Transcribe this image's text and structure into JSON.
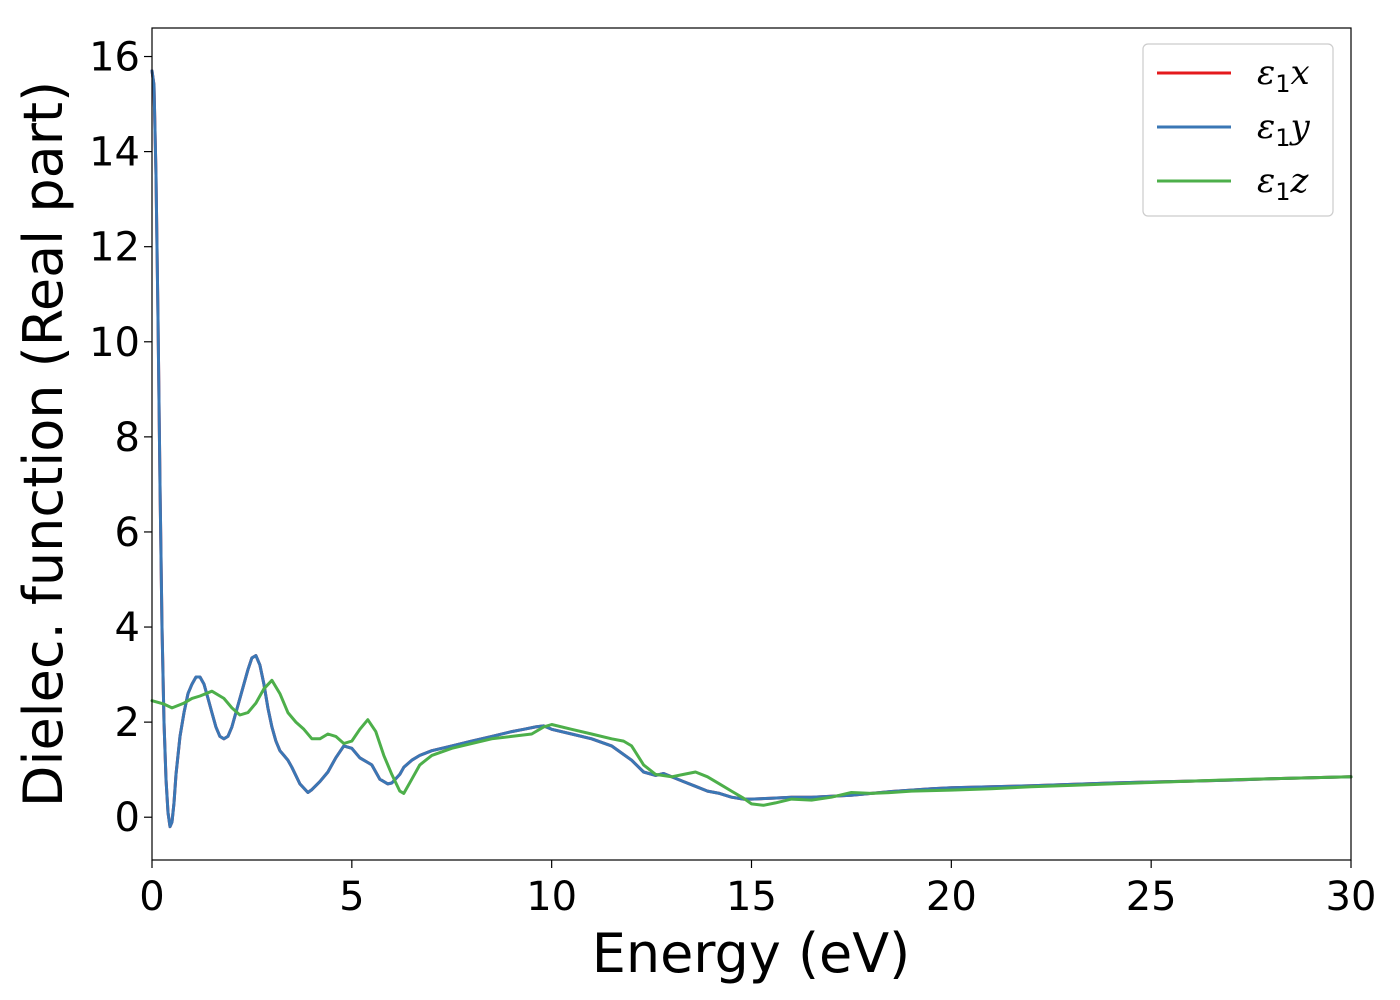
{
  "chart_data": {
    "type": "line",
    "xlabel": "Energy (eV)",
    "ylabel": "Dielec. function (Real part)",
    "xlim": [
      0,
      30
    ],
    "ylim": [
      -0.9,
      16.6
    ],
    "xticks": [
      0,
      5,
      10,
      15,
      20,
      25,
      30
    ],
    "yticks": [
      0,
      2,
      4,
      6,
      8,
      10,
      12,
      14,
      16
    ],
    "legend_position": "top-right",
    "grid": false,
    "series": [
      {
        "name": "ε1x",
        "sym": "ε",
        "sub": "1",
        "var": "x",
        "color": "#e41a1c",
        "x": [
          0,
          0.05,
          0.1,
          0.15,
          0.2,
          0.25,
          0.3,
          0.35,
          0.4,
          0.45,
          0.5,
          0.55,
          0.6,
          0.7,
          0.8,
          0.9,
          1.0,
          1.1,
          1.2,
          1.3,
          1.4,
          1.5,
          1.6,
          1.7,
          1.8,
          1.9,
          2.0,
          2.1,
          2.2,
          2.3,
          2.4,
          2.5,
          2.6,
          2.7,
          2.8,
          2.9,
          3.0,
          3.1,
          3.2,
          3.3,
          3.4,
          3.5,
          3.7,
          3.9,
          4.0,
          4.2,
          4.4,
          4.6,
          4.8,
          5.0,
          5.2,
          5.4,
          5.5,
          5.7,
          5.9,
          6.0,
          6.2,
          6.3,
          6.5,
          6.7,
          7.0,
          7.5,
          8.0,
          8.5,
          9.0,
          9.3,
          9.6,
          9.8,
          10.0,
          10.5,
          11.0,
          11.5,
          12.0,
          12.3,
          12.6,
          12.8,
          13.0,
          13.3,
          13.6,
          13.9,
          14.2,
          14.5,
          14.8,
          15.0,
          15.5,
          16.0,
          16.5,
          17.0,
          17.5,
          18.0,
          18.5,
          19.0,
          19.5,
          20.0,
          21.0,
          22.0,
          23.0,
          24.0,
          25.0,
          26.0,
          27.0,
          28.0,
          29.0,
          30.0
        ],
        "y": [
          15.7,
          15.4,
          13.5,
          10.5,
          7.0,
          4.0,
          2.0,
          0.8,
          0.1,
          -0.2,
          -0.1,
          0.3,
          0.9,
          1.7,
          2.2,
          2.6,
          2.8,
          2.95,
          2.95,
          2.8,
          2.5,
          2.2,
          1.9,
          1.7,
          1.65,
          1.7,
          1.9,
          2.2,
          2.5,
          2.8,
          3.1,
          3.35,
          3.4,
          3.2,
          2.8,
          2.3,
          1.9,
          1.6,
          1.4,
          1.3,
          1.2,
          1.05,
          0.7,
          0.52,
          0.58,
          0.75,
          0.95,
          1.25,
          1.5,
          1.45,
          1.25,
          1.15,
          1.1,
          0.8,
          0.7,
          0.72,
          0.9,
          1.05,
          1.2,
          1.3,
          1.4,
          1.5,
          1.6,
          1.7,
          1.8,
          1.85,
          1.9,
          1.92,
          1.85,
          1.75,
          1.65,
          1.5,
          1.2,
          0.95,
          0.88,
          0.92,
          0.85,
          0.75,
          0.65,
          0.55,
          0.5,
          0.42,
          0.38,
          0.38,
          0.4,
          0.42,
          0.42,
          0.44,
          0.46,
          0.5,
          0.54,
          0.57,
          0.6,
          0.62,
          0.64,
          0.66,
          0.69,
          0.72,
          0.74,
          0.76,
          0.78,
          0.81,
          0.83,
          0.85
        ]
      },
      {
        "name": "ε1y",
        "sym": "ε",
        "sub": "1",
        "var": "y",
        "color": "#3a77b5",
        "x": [
          0,
          0.05,
          0.1,
          0.15,
          0.2,
          0.25,
          0.3,
          0.35,
          0.4,
          0.45,
          0.5,
          0.55,
          0.6,
          0.7,
          0.8,
          0.9,
          1.0,
          1.1,
          1.2,
          1.3,
          1.4,
          1.5,
          1.6,
          1.7,
          1.8,
          1.9,
          2.0,
          2.1,
          2.2,
          2.3,
          2.4,
          2.5,
          2.6,
          2.7,
          2.8,
          2.9,
          3.0,
          3.1,
          3.2,
          3.3,
          3.4,
          3.5,
          3.7,
          3.9,
          4.0,
          4.2,
          4.4,
          4.6,
          4.8,
          5.0,
          5.2,
          5.4,
          5.5,
          5.7,
          5.9,
          6.0,
          6.2,
          6.3,
          6.5,
          6.7,
          7.0,
          7.5,
          8.0,
          8.5,
          9.0,
          9.3,
          9.6,
          9.8,
          10.0,
          10.5,
          11.0,
          11.5,
          12.0,
          12.3,
          12.6,
          12.8,
          13.0,
          13.3,
          13.6,
          13.9,
          14.2,
          14.5,
          14.8,
          15.0,
          15.5,
          16.0,
          16.5,
          17.0,
          17.5,
          18.0,
          18.5,
          19.0,
          19.5,
          20.0,
          21.0,
          22.0,
          23.0,
          24.0,
          25.0,
          26.0,
          27.0,
          28.0,
          29.0,
          30.0
        ],
        "y": [
          15.7,
          15.4,
          13.5,
          10.5,
          7.0,
          4.0,
          2.0,
          0.8,
          0.1,
          -0.2,
          -0.1,
          0.3,
          0.9,
          1.7,
          2.2,
          2.6,
          2.8,
          2.95,
          2.95,
          2.8,
          2.5,
          2.2,
          1.9,
          1.7,
          1.65,
          1.7,
          1.9,
          2.2,
          2.5,
          2.8,
          3.1,
          3.35,
          3.4,
          3.2,
          2.8,
          2.3,
          1.9,
          1.6,
          1.4,
          1.3,
          1.2,
          1.05,
          0.7,
          0.52,
          0.58,
          0.75,
          0.95,
          1.25,
          1.5,
          1.45,
          1.25,
          1.15,
          1.1,
          0.8,
          0.7,
          0.72,
          0.9,
          1.05,
          1.2,
          1.3,
          1.4,
          1.5,
          1.6,
          1.7,
          1.8,
          1.85,
          1.9,
          1.92,
          1.85,
          1.75,
          1.65,
          1.5,
          1.2,
          0.95,
          0.88,
          0.92,
          0.85,
          0.75,
          0.65,
          0.55,
          0.5,
          0.42,
          0.38,
          0.38,
          0.4,
          0.42,
          0.42,
          0.44,
          0.46,
          0.5,
          0.54,
          0.57,
          0.6,
          0.62,
          0.64,
          0.66,
          0.69,
          0.72,
          0.74,
          0.76,
          0.78,
          0.81,
          0.83,
          0.85
        ]
      },
      {
        "name": "ε1z",
        "sym": "ε",
        "sub": "1",
        "var": "z",
        "color": "#4daf4a",
        "x": [
          0,
          0.3,
          0.5,
          0.8,
          1.0,
          1.2,
          1.5,
          1.8,
          2.0,
          2.2,
          2.4,
          2.6,
          2.8,
          3.0,
          3.2,
          3.4,
          3.6,
          3.8,
          4.0,
          4.2,
          4.4,
          4.6,
          4.8,
          5.0,
          5.2,
          5.4,
          5.6,
          5.8,
          6.0,
          6.2,
          6.3,
          6.5,
          6.7,
          7.0,
          7.5,
          8.0,
          8.5,
          9.0,
          9.5,
          9.8,
          10.0,
          10.5,
          11.0,
          11.5,
          11.8,
          12.0,
          12.3,
          12.6,
          13.0,
          13.3,
          13.6,
          13.9,
          14.2,
          14.5,
          14.8,
          15.0,
          15.3,
          15.6,
          16.0,
          16.5,
          17.0,
          17.5,
          18.0,
          18.5,
          19.0,
          19.5,
          20.0,
          21.0,
          22.0,
          23.0,
          24.0,
          25.0,
          26.0,
          27.0,
          28.0,
          29.0,
          30.0
        ],
        "y": [
          2.45,
          2.38,
          2.3,
          2.4,
          2.5,
          2.55,
          2.65,
          2.5,
          2.3,
          2.15,
          2.2,
          2.4,
          2.7,
          2.88,
          2.6,
          2.2,
          2.0,
          1.85,
          1.65,
          1.65,
          1.75,
          1.7,
          1.55,
          1.6,
          1.85,
          2.05,
          1.8,
          1.3,
          0.9,
          0.55,
          0.5,
          0.8,
          1.1,
          1.3,
          1.45,
          1.55,
          1.65,
          1.7,
          1.75,
          1.9,
          1.95,
          1.85,
          1.75,
          1.65,
          1.6,
          1.5,
          1.1,
          0.9,
          0.85,
          0.9,
          0.95,
          0.85,
          0.7,
          0.55,
          0.4,
          0.28,
          0.25,
          0.3,
          0.38,
          0.36,
          0.42,
          0.52,
          0.5,
          0.52,
          0.55,
          0.56,
          0.57,
          0.6,
          0.64,
          0.67,
          0.7,
          0.73,
          0.76,
          0.79,
          0.81,
          0.83,
          0.85
        ]
      }
    ]
  }
}
